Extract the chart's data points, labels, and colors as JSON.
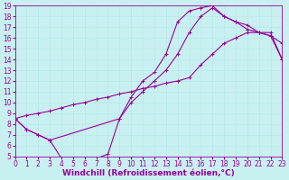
{
  "xlabel": "Windchill (Refroidissement éolien,°C)",
  "bg_color": "#c8f0f0",
  "line_color": "#990099",
  "grid_color": "#b8e8e8",
  "xmin": 0,
  "xmax": 23,
  "ymin": 5,
  "ymax": 19,
  "tick_fontsize": 5.5,
  "xlabel_fontsize": 6.5,
  "curve1_x": [
    0,
    1,
    2,
    3,
    4,
    5,
    6,
    7,
    8,
    9,
    10,
    11,
    12,
    13,
    14,
    15,
    16,
    17,
    18,
    19,
    20,
    21,
    22,
    23
  ],
  "curve1_y": [
    8.5,
    7.5,
    7.0,
    6.5,
    4.8,
    4.8,
    4.8,
    4.8,
    5.2,
    8.5,
    10.5,
    12.0,
    12.8,
    14.5,
    17.5,
    18.5,
    18.8,
    19.0,
    18.0,
    17.5,
    17.2,
    16.5,
    16.2,
    15.5
  ],
  "curve2_x": [
    0,
    1,
    2,
    3,
    4,
    5,
    6,
    7,
    8,
    9,
    10,
    11,
    12,
    13,
    14,
    15,
    16,
    17,
    18,
    19,
    20,
    21,
    22,
    23
  ],
  "curve2_y": [
    8.5,
    8.8,
    9.0,
    9.2,
    9.5,
    9.8,
    10.0,
    10.3,
    10.5,
    10.8,
    11.0,
    11.3,
    11.5,
    11.8,
    12.0,
    12.3,
    13.5,
    14.5,
    15.5,
    16.0,
    16.5,
    16.5,
    16.5,
    14.0
  ],
  "curve3_x": [
    0,
    1,
    2,
    3,
    9,
    10,
    11,
    12,
    13,
    14,
    15,
    16,
    17,
    18,
    19,
    20,
    21,
    22,
    23
  ],
  "curve3_y": [
    8.5,
    7.5,
    7.0,
    6.5,
    8.5,
    10.0,
    11.0,
    12.0,
    13.0,
    14.5,
    16.5,
    18.0,
    18.8,
    18.0,
    17.5,
    16.8,
    16.5,
    16.2,
    14.0
  ]
}
